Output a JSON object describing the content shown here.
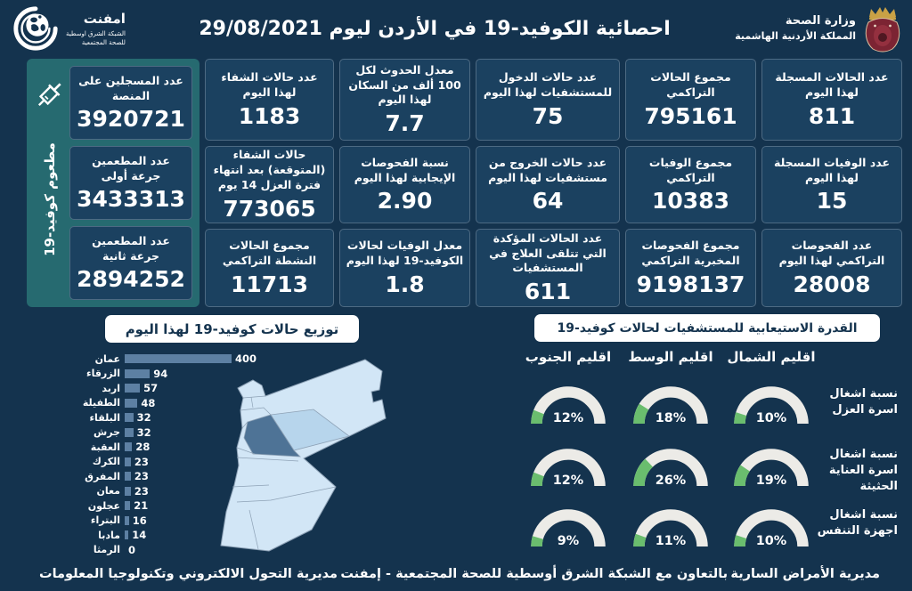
{
  "page": {
    "colors": {
      "background": "#14334E",
      "card": "#1B4160",
      "vaccination_panel": "#266A70",
      "bar": "#5D80A3",
      "gauge_track": "#ECEBE7",
      "gauge_fill": "#6ABD6E",
      "map_light": "#D2E6F6",
      "map_amman": "#4E7396",
      "map_zarqa": "#B7D5EC"
    }
  },
  "header": {
    "title": "احصائية الكوفيد-19 في الأردن ليوم  29/08/2021",
    "ministry_line1": "وزارة الصحة",
    "ministry_line2": "المملكة الأردنية الهاشمية",
    "emphnet_name": "امفنت",
    "emphnet_line1": "الشبكة الشرق اوسطية",
    "emphnet_line2": "للصحة المجتمعية"
  },
  "stats_columns": [
    {
      "cards": [
        {
          "label": "عدد الحالات المسجلة لهذا اليوم",
          "value": "811"
        },
        {
          "label": "عدد الوفيات المسجلة لهذا اليوم",
          "value": "15"
        },
        {
          "label": "عدد الفحوصات التراكمي لهذا اليوم",
          "value": "28008"
        }
      ]
    },
    {
      "cards": [
        {
          "label": "مجموع الحالات التراكمي",
          "value": "795161"
        },
        {
          "label": "مجموع الوفيات التراكمي",
          "value": "10383"
        },
        {
          "label": "مجموع الفحوصات المخبرية التراكمي",
          "value": "9198137"
        }
      ]
    },
    {
      "cards": [
        {
          "label": "عدد حالات الدخول للمستشفيات لهذا اليوم",
          "value": "75"
        },
        {
          "label": "عدد حالات الخروج من مستشفيات لهذا اليوم",
          "value": "64"
        },
        {
          "label": "عدد الحالات المؤكدة التي تتلقى العلاج في المستشفيات",
          "value": "611"
        }
      ]
    },
    {
      "cards": [
        {
          "label": "معدل الحدوث لكل 100 ألف من السكان لهذا اليوم",
          "value": "7.7"
        },
        {
          "label": "نسبة الفحوصات الإيجابية لهذا اليوم",
          "value": "2.90"
        },
        {
          "label": "معدل الوفيات لحالات الكوفيد-19 لهذا اليوم",
          "value": "1.8"
        }
      ]
    },
    {
      "cards": [
        {
          "label": "عدد حالات الشفاء لهذا اليوم",
          "value": "1183"
        },
        {
          "label": "حالات الشفاء (المتوقعة) بعد انتهاء فترة العزل 14 يوم",
          "value": "773065"
        },
        {
          "label": "مجموع الحالات النشطة التراكمي",
          "value": "11713"
        }
      ]
    }
  ],
  "vaccination": {
    "vertical_label": "مطعوم كوفيد-19",
    "cards": [
      {
        "label": "عدد المسجلين على المنصة",
        "value": "3920721"
      },
      {
        "label": "عدد المطعمين جرعة أولى",
        "value": "3433313"
      },
      {
        "label": "عدد المطعمين جرعة ثانية",
        "value": "2894252"
      }
    ]
  },
  "chart_data": [
    {
      "type": "bar",
      "orientation": "horizontal",
      "title": "توزيع حالات كوفيد-19 لهذا اليوم",
      "categories": [
        "عمان",
        "الزرقاء",
        "اربد",
        "الطفيلة",
        "البلقاء",
        "جرش",
        "العقبة",
        "الكرك",
        "المفرق",
        "معان",
        "عجلون",
        "البتراء",
        "مادبا",
        "الرمثا"
      ],
      "values": [
        400,
        94,
        57,
        48,
        32,
        32,
        28,
        23,
        23,
        23,
        21,
        16,
        14,
        0
      ],
      "xlim": [
        0,
        400
      ],
      "bar_color": "#5D80A3",
      "value_labels": true,
      "legend": "none",
      "grid": false
    },
    {
      "type": "gauge",
      "title": "القدرة الاستيعابية للمستشفيات لحالات كوفيد-19",
      "unit": "%",
      "columns": [
        "اقليم الجنوب",
        "اقليم الوسط",
        "اقليم الشمال"
      ],
      "rows": [
        {
          "label": "نسبة اشغال اسرة العزل",
          "values": [
            12,
            18,
            10
          ]
        },
        {
          "label": "نسبة اشغال اسرة العناية الحثيثة",
          "values": [
            12,
            26,
            19
          ]
        },
        {
          "label": "نسبة اشغال اجهزة التنفس",
          "values": [
            9,
            11,
            10
          ]
        }
      ],
      "range": [
        0,
        100
      ],
      "track_color": "#ECEBE7",
      "fill_color": "#6ABD6E"
    }
  ],
  "footer": {
    "right": "مديرية الأمراض السارية",
    "center": "بالتعاون مع الشبكة الشرق أوسطية للصحة المجتمعية - إمفنت",
    "left": "مديرية التحول الالكتروني وتكنولوجيا المعلومات"
  }
}
